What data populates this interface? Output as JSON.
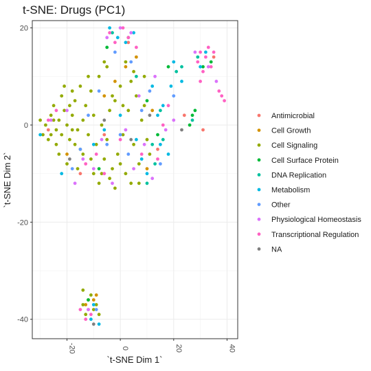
{
  "chart_data": {
    "type": "scatter",
    "title": "t-SNE: Drugs (PC1)",
    "xlabel": "`t-SNE Dim 1`",
    "ylabel": "`t-SNE Dim 2`",
    "xlim": [
      -33,
      44
    ],
    "ylim": [
      -44,
      21.5
    ],
    "x_ticks": [
      -20,
      0,
      20,
      40
    ],
    "y_ticks": [
      20,
      0,
      -20,
      -40
    ],
    "x_tick_labels": [
      "-20",
      "0",
      "20",
      "40"
    ],
    "y_tick_labels": [
      "20",
      "0",
      "-20",
      "-40"
    ],
    "grid": true,
    "legend_position": "right",
    "categories": [
      "Antimicrobial",
      "Cell Growth",
      "Cell Signaling",
      "Cell Surface Protein",
      "DNA Replication",
      "Metabolism",
      "Other",
      "Physiological Homeostasis",
      "Transcriptional Regulation",
      "NA"
    ],
    "colors": [
      "#F8766D",
      "#D39200",
      "#93AA00",
      "#00BA38",
      "#00C19F",
      "#00B9E3",
      "#619CFF",
      "#DB72FB",
      "#FF61C3",
      "#7F7F7F"
    ],
    "series": [
      {
        "name": "Antimicrobial",
        "points": [
          [
            -27,
            -1
          ],
          [
            -15,
            -10
          ],
          [
            -6,
            -2
          ],
          [
            14,
            -5
          ],
          [
            24,
            2
          ],
          [
            35,
            14
          ],
          [
            31,
            -1
          ],
          [
            3,
            17
          ],
          [
            -12,
            -38
          ]
        ]
      },
      {
        "name": "Cell Growth",
        "points": [
          [
            -10,
            -36
          ],
          [
            -13,
            -37
          ],
          [
            -9,
            -35
          ],
          [
            -6,
            6
          ],
          [
            -2,
            9
          ],
          [
            6,
            14
          ],
          [
            2,
            12
          ],
          [
            12,
            3
          ],
          [
            -20,
            -6
          ],
          [
            10,
            -9
          ]
        ]
      },
      {
        "name": "Cell Signaling",
        "points": [
          [
            -30,
            1
          ],
          [
            -28,
            0
          ],
          [
            -26,
            2
          ],
          [
            -27,
            -3
          ],
          [
            -25,
            4
          ],
          [
            -24,
            -1
          ],
          [
            -23,
            1
          ],
          [
            -22,
            -2
          ],
          [
            -21,
            3
          ],
          [
            -20,
            0
          ],
          [
            -19,
            -3
          ],
          [
            -18,
            2
          ],
          [
            -17,
            5
          ],
          [
            -16,
            -1
          ],
          [
            -15,
            -5
          ],
          [
            -14,
            1
          ],
          [
            -13,
            4
          ],
          [
            -12,
            -2
          ],
          [
            -11,
            7
          ],
          [
            -10,
            2
          ],
          [
            -9,
            -4
          ],
          [
            -8,
            10
          ],
          [
            -7,
            0
          ],
          [
            -6,
            -7
          ],
          [
            -5,
            12
          ],
          [
            -4,
            3
          ],
          [
            -3,
            -9
          ],
          [
            -2,
            5
          ],
          [
            -1,
            -6
          ],
          [
            0,
            8
          ],
          [
            1,
            -2
          ],
          [
            2,
            -10
          ],
          [
            3,
            3
          ],
          [
            4,
            9
          ],
          [
            5,
            -4
          ],
          [
            6,
            6
          ],
          [
            7,
            -8
          ],
          [
            8,
            1
          ],
          [
            9,
            10
          ],
          [
            10,
            -3
          ],
          [
            -24,
            -4
          ],
          [
            -22,
            6
          ],
          [
            -20,
            -8
          ],
          [
            -18,
            7
          ],
          [
            -16,
            -9
          ],
          [
            -14,
            -6
          ],
          [
            -12,
            10
          ],
          [
            -10,
            -10
          ],
          [
            -8,
            -12
          ],
          [
            -6,
            13
          ],
          [
            -4,
            -11
          ],
          [
            -2,
            -13
          ],
          [
            0,
            -8
          ],
          [
            2,
            13
          ],
          [
            4,
            -12
          ],
          [
            -14,
            -34
          ],
          [
            -12,
            -36
          ],
          [
            -10,
            -38
          ],
          [
            -13,
            -39
          ],
          [
            -11,
            -35
          ],
          [
            -9,
            -37
          ],
          [
            -14,
            -37
          ],
          [
            -8,
            -39
          ],
          [
            -26,
            -2
          ],
          [
            -19,
            4
          ],
          [
            -11,
            -7
          ],
          [
            -5,
            -3
          ],
          [
            1,
            4
          ],
          [
            -3,
            6
          ],
          [
            -17,
            -4
          ],
          [
            -23,
            -6
          ],
          [
            -29,
            -2
          ],
          [
            -21,
            8
          ],
          [
            -15,
            8
          ],
          [
            -7,
            -10
          ],
          [
            5,
            11
          ],
          [
            7,
            -12
          ],
          [
            9,
            4
          ],
          [
            11,
            -6
          ],
          [
            -25,
            1
          ],
          [
            -18,
            -1
          ]
        ]
      },
      {
        "name": "Cell Surface Protein",
        "points": [
          [
            27,
            2
          ],
          [
            26,
            0
          ],
          [
            28,
            3
          ],
          [
            31,
            12
          ],
          [
            34,
            13
          ],
          [
            -5,
            16
          ],
          [
            3,
            18
          ],
          [
            -12,
            -36
          ],
          [
            14,
            -2
          ],
          [
            18,
            12
          ],
          [
            10,
            5
          ],
          [
            -8,
            -9
          ]
        ]
      },
      {
        "name": "DNA Replication",
        "points": [
          [
            21,
            11
          ],
          [
            23,
            12
          ],
          [
            27,
            1
          ],
          [
            29,
            14
          ],
          [
            16,
            -3
          ],
          [
            12,
            -4
          ],
          [
            6,
            10
          ],
          [
            -3,
            19
          ],
          [
            15,
            3
          ],
          [
            13,
            -8
          ],
          [
            10,
            -12
          ]
        ]
      },
      {
        "name": "Metabolism",
        "points": [
          [
            -4,
            20
          ],
          [
            -1,
            18
          ],
          [
            2,
            17
          ],
          [
            5,
            19
          ],
          [
            -11,
            -40
          ],
          [
            -8,
            -41
          ],
          [
            -10,
            -37
          ],
          [
            16,
            4
          ],
          [
            14,
            2
          ],
          [
            12,
            8
          ],
          [
            19,
            8
          ],
          [
            20,
            13
          ],
          [
            23,
            9
          ],
          [
            8,
            -7
          ],
          [
            6,
            -3
          ],
          [
            -10,
            -4
          ],
          [
            -6,
            -1
          ],
          [
            0,
            2
          ],
          [
            30,
            12
          ],
          [
            32,
            15
          ],
          [
            15,
            -4
          ],
          [
            -30,
            -2
          ],
          [
            -22,
            -10
          ],
          [
            10,
            -10
          ],
          [
            18,
            -6
          ]
        ]
      },
      {
        "name": "Other",
        "points": [
          [
            -15,
            -5
          ],
          [
            -8,
            7
          ],
          [
            -2,
            15
          ],
          [
            4,
            13
          ],
          [
            11,
            7
          ],
          [
            20,
            6
          ],
          [
            -12,
            2
          ],
          [
            -5,
            -4
          ],
          [
            3,
            -6
          ],
          [
            8,
            3
          ],
          [
            15,
            -8
          ],
          [
            0,
            -2
          ],
          [
            -18,
            -9
          ],
          [
            -9,
            -38
          ]
        ]
      },
      {
        "name": "Physiological Homeostasis",
        "points": [
          [
            -5,
            18
          ],
          [
            0,
            20
          ],
          [
            4,
            19
          ],
          [
            -10,
            -9
          ],
          [
            -14,
            -7
          ],
          [
            -7,
            -3
          ],
          [
            2,
            -1
          ],
          [
            7,
            6
          ],
          [
            13,
            10
          ],
          [
            17,
            -1
          ],
          [
            20,
            1
          ],
          [
            28,
            15
          ],
          [
            33,
            12
          ],
          [
            36,
            9
          ],
          [
            -3,
            -12
          ],
          [
            5,
            -9
          ],
          [
            12,
            -11
          ],
          [
            -20,
            3
          ],
          [
            -26,
            1
          ],
          [
            -17,
            -12
          ],
          [
            9,
            -4
          ],
          [
            -12,
            -38
          ]
        ]
      },
      {
        "name": "Transcriptional Regulation",
        "points": [
          [
            -4,
            19
          ],
          [
            -2,
            17
          ],
          [
            1,
            20
          ],
          [
            3,
            18
          ],
          [
            6,
            16
          ],
          [
            29,
            13
          ],
          [
            30,
            15
          ],
          [
            31,
            11
          ],
          [
            32,
            14
          ],
          [
            33,
            16
          ],
          [
            34,
            12
          ],
          [
            35,
            15
          ],
          [
            30,
            9
          ],
          [
            38,
            6
          ],
          [
            39,
            5
          ],
          [
            37,
            7
          ],
          [
            -27,
            1
          ],
          [
            -24,
            3
          ],
          [
            -13,
            -8
          ],
          [
            -9,
            -6
          ],
          [
            0,
            -3
          ],
          [
            8,
            -6
          ],
          [
            14,
            -7
          ],
          [
            16,
            0
          ],
          [
            18,
            4
          ],
          [
            -15,
            -38
          ],
          [
            -13,
            -40
          ],
          [
            -11,
            -39
          ],
          [
            -6,
            -10
          ]
        ]
      },
      {
        "name": "NA",
        "points": [
          [
            -6,
            1
          ],
          [
            4,
            -3
          ],
          [
            -19,
            -7
          ],
          [
            11,
            2
          ],
          [
            23,
            -1
          ],
          [
            -10,
            -41
          ]
        ]
      }
    ]
  }
}
